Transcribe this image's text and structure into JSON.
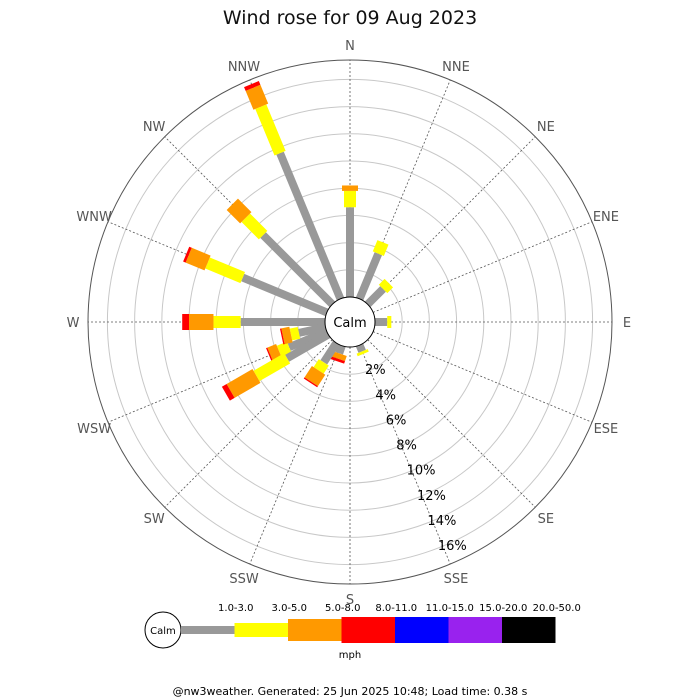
{
  "footer": "@nw3weather. Generated: 25 Jun 2025 10:48; Load time: 0.38 s",
  "chart_data": {
    "type": "windrose",
    "title": "Wind rose for 09 Aug 2023",
    "directions": [
      "N",
      "NNE",
      "NE",
      "ENE",
      "E",
      "ESE",
      "SE",
      "SSE",
      "S",
      "SSW",
      "SW",
      "WSW",
      "W",
      "WNW",
      "NW",
      "NNW"
    ],
    "ring_labels": [
      "2%",
      "4%",
      "6%",
      "8%",
      "10%",
      "12%",
      "14%",
      "16%"
    ],
    "calm_label": "Calm",
    "units": "mph",
    "grid": true,
    "speed_bins": [
      {
        "label": "1.0-3.0",
        "color": "#999999"
      },
      {
        "label": "3.0-5.0",
        "color": "#ffff00"
      },
      {
        "label": "5.0-8.0",
        "color": "#ff9900"
      },
      {
        "label": "8.0-11.0",
        "color": "#ff0000"
      },
      {
        "label": "11.0-15.0",
        "color": "#0000ff"
      },
      {
        "label": "15.0-20.0",
        "color": "#9922ee"
      },
      {
        "label": "20.0-50.0",
        "color": "#000000"
      }
    ],
    "cumulative_percent_by_direction": {
      "N": [
        6.6,
        7.8,
        8.2,
        8.2,
        8.2,
        8.2,
        8.2
      ],
      "NNE": [
        3.6,
        4.5,
        4.5,
        4.5,
        4.5,
        4.5,
        4.5
      ],
      "NE": [
        1.6,
        2.2,
        2.2,
        2.2,
        2.2,
        2.2,
        2.2
      ],
      "ENE": [
        0.0,
        0.0,
        0.0,
        0.0,
        0.0,
        0.0,
        0.0
      ],
      "E": [
        0.9,
        1.2,
        1.2,
        1.2,
        1.2,
        1.2,
        1.2
      ],
      "ESE": [
        0.0,
        0.0,
        0.0,
        0.0,
        0.0,
        0.0,
        0.0
      ],
      "SE": [
        0.0,
        0.0,
        0.0,
        0.0,
        0.0,
        0.0,
        0.0
      ],
      "SSE": [
        0.5,
        0.7,
        0.7,
        0.7,
        0.7,
        0.7,
        0.7
      ],
      "S": [
        0.0,
        0.0,
        0.0,
        0.0,
        0.0,
        0.0,
        0.0
      ],
      "SSW": [
        0.0,
        0.0,
        0.0,
        0.0,
        0.0,
        0.0,
        0.0
      ],
      "SW": [
        0.0,
        0.0,
        0.0,
        0.0,
        0.0,
        0.0,
        0.0
      ],
      "WSW": [
        3.0,
        3.8,
        4.5,
        4.6,
        4.6,
        4.6,
        4.6
      ],
      "W": [
        6.2,
        8.2,
        10.0,
        10.5,
        10.5,
        10.5,
        10.5
      ],
      "WNW": [
        6.7,
        9.5,
        11.0,
        11.2,
        11.2,
        11.2,
        11.2
      ],
      "NW": [
        7.2,
        9.0,
        10.4,
        10.4,
        10.4,
        10.4,
        10.4
      ],
      "NNW": [
        11.6,
        15.3,
        16.8,
        17.1,
        17.1,
        17.1,
        17.1
      ]
    },
    "extra_small_bars": [
      {
        "angle_deg": 199,
        "values": [
          0.6,
          0.6,
          1.0,
          1.2,
          1.2,
          1.2,
          1.2
        ]
      },
      {
        "angle_deg": 213,
        "values": [
          1.7,
          2.4,
          3.4,
          3.5,
          3.5,
          3.5,
          3.5
        ]
      },
      {
        "angle_deg": 225,
        "values": [
          0.0,
          0.0,
          0.0,
          0.0,
          0.0,
          0.0,
          0.0
        ]
      },
      {
        "angle_deg": 240,
        "values": [
          3.5,
          6.1,
          8.3,
          8.7,
          8.7,
          8.7,
          8.7
        ]
      },
      {
        "angle_deg": 258,
        "values": [
          2.0,
          2.6,
          3.2,
          3.3,
          3.3,
          3.3,
          3.3
        ]
      }
    ]
  }
}
